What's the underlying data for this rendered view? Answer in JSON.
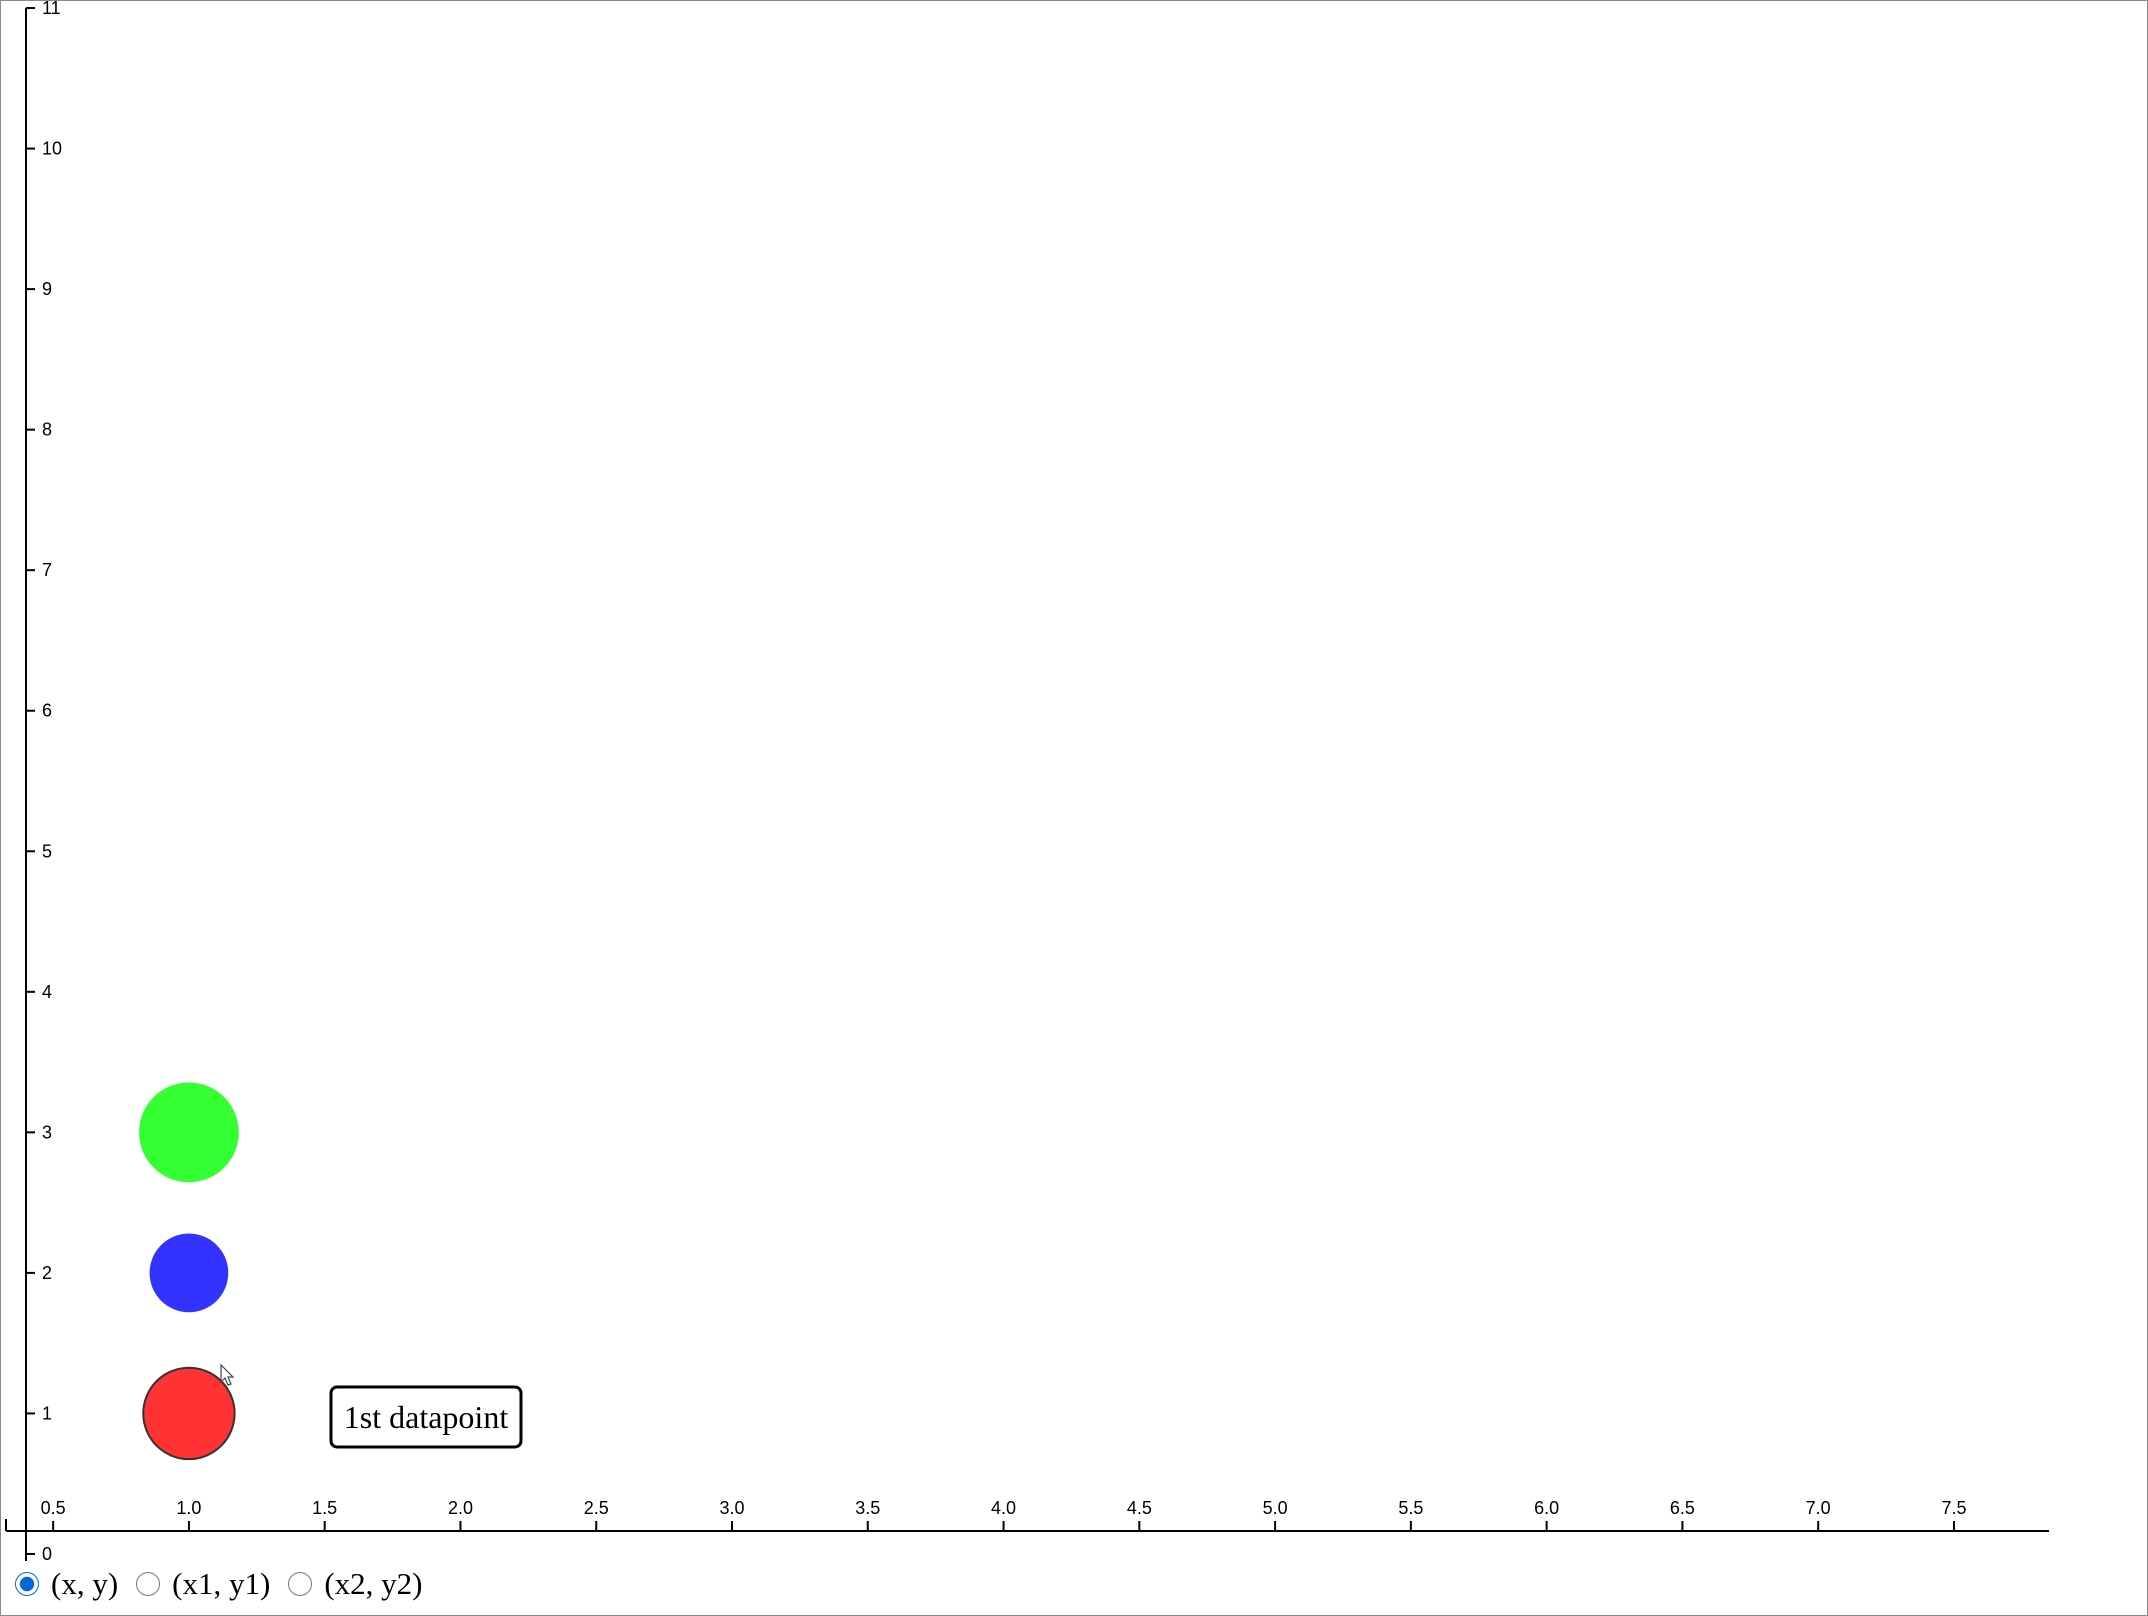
{
  "chart_data": {
    "type": "scatter",
    "title": "",
    "xlabel": "",
    "ylabel": "",
    "xlim": [
      0.4,
      7.85
    ],
    "ylim": [
      -0.05,
      11.05
    ],
    "x_ticks": [
      "0.5",
      "1.0",
      "1.5",
      "2.0",
      "2.5",
      "3.0",
      "3.5",
      "4.0",
      "4.5",
      "5.0",
      "5.5",
      "6.0",
      "6.5",
      "7.0",
      "7.5"
    ],
    "y_ticks": [
      "0",
      "1",
      "2",
      "3",
      "4",
      "5",
      "6",
      "7",
      "8",
      "9",
      "10",
      "11"
    ],
    "points": [
      {
        "x": 1,
        "y": 1,
        "color": "#ff3333",
        "size": 0.65,
        "stroke": "#333333"
      },
      {
        "x": 1,
        "y": 2,
        "color": "#3333ff",
        "size": 0.56,
        "stroke": "none"
      },
      {
        "x": 1,
        "y": 3,
        "color": "#33ff33",
        "size": 0.71,
        "stroke": "none"
      }
    ],
    "grid": false,
    "tooltip": {
      "text": "1st datapoint"
    }
  },
  "controls": {
    "selected": 0,
    "options": [
      "(x, y)",
      "(x1, y1)",
      "(x2, y2)"
    ]
  }
}
